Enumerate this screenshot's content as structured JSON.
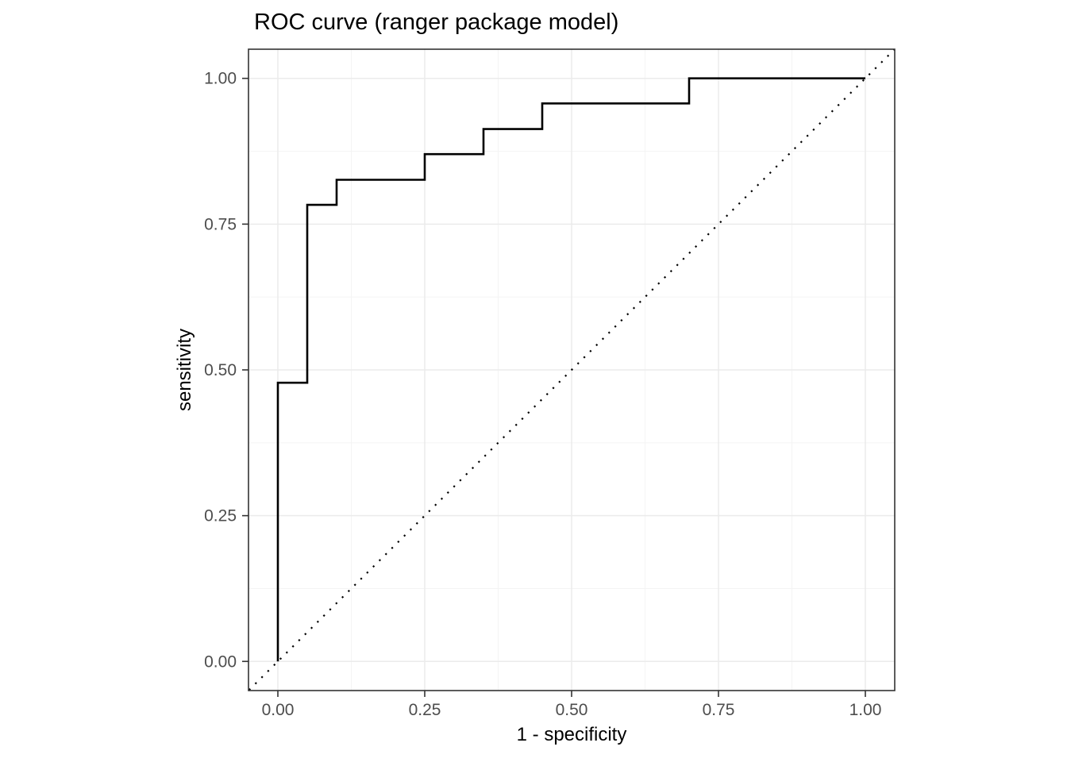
{
  "chart_data": {
    "type": "line",
    "title": "ROC curve (ranger package model)",
    "xlabel": "1 - specificity",
    "ylabel": "sensitivity",
    "xlim": [
      -0.05,
      1.05
    ],
    "ylim": [
      -0.05,
      1.05
    ],
    "x_tick_values": [
      0,
      0.25,
      0.5,
      0.75,
      1.0
    ],
    "y_tick_values": [
      0,
      0.25,
      0.5,
      0.75,
      1.0
    ],
    "x_tick_labels": [
      "0.00",
      "0.25",
      "0.50",
      "0.75",
      "1.00"
    ],
    "y_tick_labels": [
      "0.00",
      "0.25",
      "0.50",
      "0.75",
      "1.00"
    ],
    "minor_tick_values": [
      0.125,
      0.375,
      0.625,
      0.875
    ],
    "grid": true,
    "legend": "none",
    "series": [
      {
        "name": "roc-step-curve",
        "style": "solid",
        "color": "#000000",
        "width": 2.6,
        "points": [
          [
            0.0,
            0.0
          ],
          [
            0.0,
            0.478
          ],
          [
            0.05,
            0.478
          ],
          [
            0.05,
            0.783
          ],
          [
            0.1,
            0.783
          ],
          [
            0.1,
            0.826
          ],
          [
            0.25,
            0.826
          ],
          [
            0.25,
            0.87
          ],
          [
            0.35,
            0.87
          ],
          [
            0.35,
            0.913
          ],
          [
            0.45,
            0.913
          ],
          [
            0.45,
            0.957
          ],
          [
            0.7,
            0.957
          ],
          [
            0.7,
            1.0
          ],
          [
            1.0,
            1.0
          ]
        ]
      },
      {
        "name": "chance-diagonal",
        "style": "dotted",
        "color": "#000000",
        "width": 2.2,
        "points": [
          [
            -0.049,
            -0.049
          ],
          [
            1.049,
            1.049
          ]
        ]
      }
    ],
    "colors": {
      "background": "#FFFFFF",
      "panel_background": "#FFFFFF",
      "grid_major": "#EBEBEB",
      "grid_minor": "#F4F4F4",
      "panel_border": "#333333",
      "tick": "#333333",
      "tick_label": "#4D4D4D",
      "title_text": "#000000"
    }
  }
}
